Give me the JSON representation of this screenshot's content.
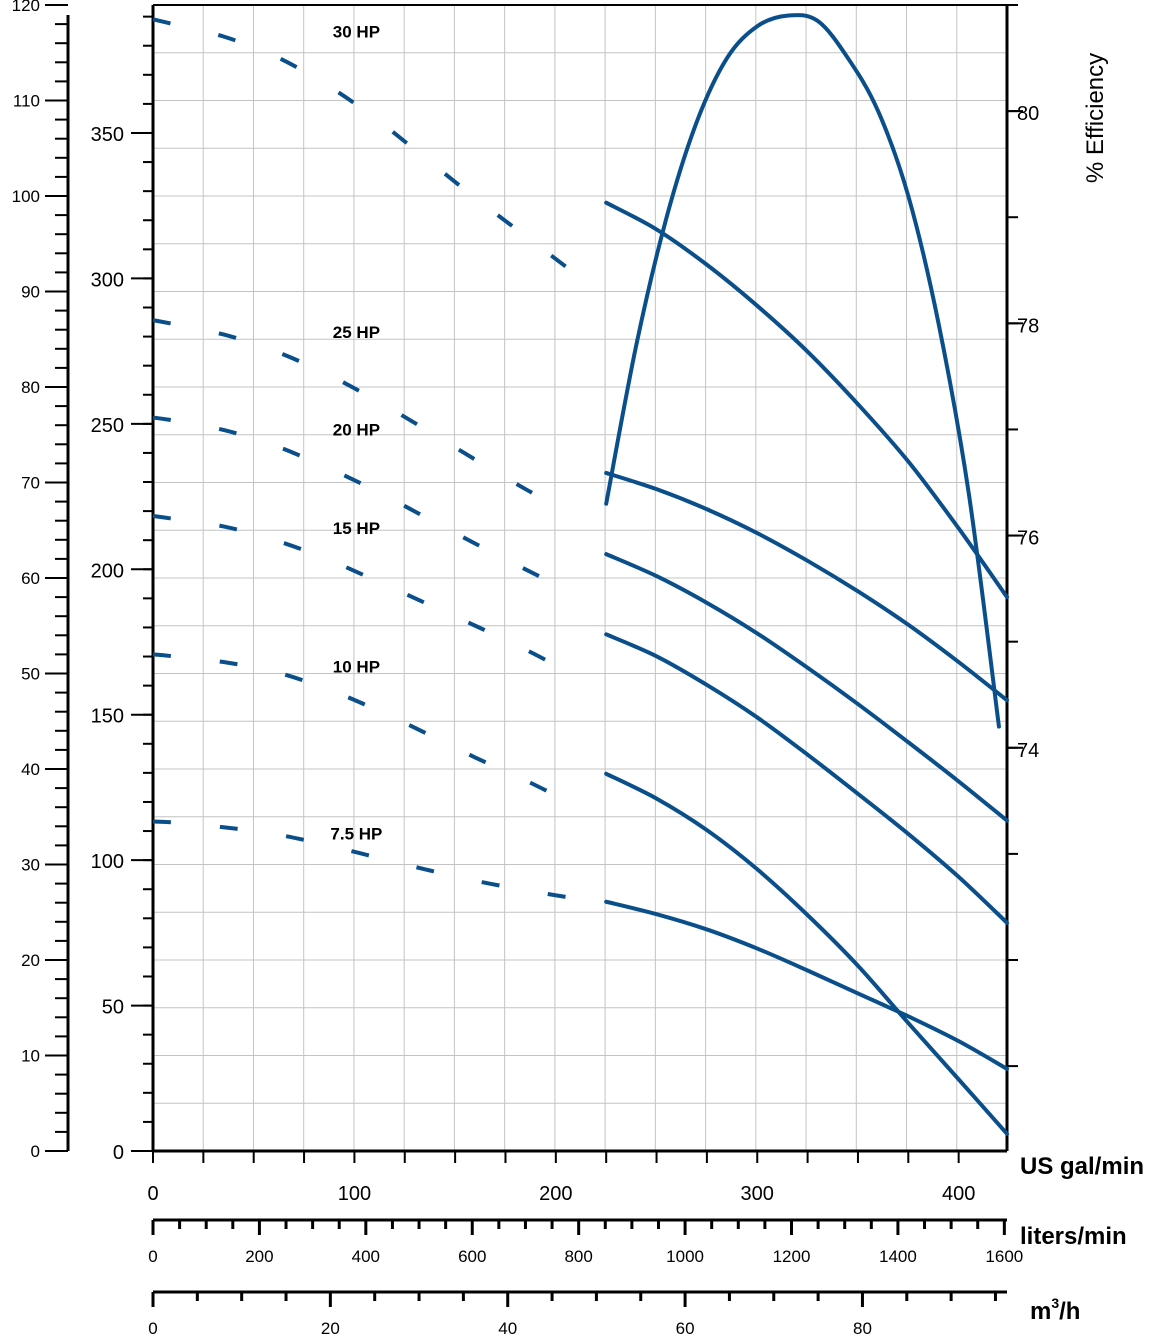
{
  "chart_data": {
    "type": "line",
    "x_axes": [
      {
        "unit": "US gal/min",
        "range": [
          0,
          424
        ],
        "ticks": [
          0,
          100,
          200,
          300,
          400
        ],
        "minor_step": 25
      },
      {
        "unit": "liters/min",
        "range": [
          0,
          1605
        ],
        "ticks": [
          0,
          200,
          400,
          600,
          800,
          1000,
          1200,
          1400,
          1600
        ],
        "minor_step": 50
      },
      {
        "unit": "m³/h",
        "unit_base": "m",
        "unit_sup": "3",
        "unit_tail": "/h",
        "range": [
          0,
          96.3
        ],
        "ticks": [
          0,
          20,
          40,
          60,
          80
        ],
        "minor_step": 5
      }
    ],
    "y_axes": [
      {
        "side": "left-outer",
        "range": [
          0,
          120
        ],
        "ticks": [
          0,
          10,
          20,
          30,
          40,
          50,
          60,
          70,
          80,
          90,
          100,
          110,
          120
        ],
        "minor_step": 2
      },
      {
        "side": "left-inner",
        "range": [
          0,
          394
        ],
        "ticks": [
          0,
          50,
          100,
          150,
          200,
          250,
          300,
          350
        ],
        "minor_step": 10
      },
      {
        "side": "right",
        "title": "% Efficiency",
        "range": [
          70.2,
          81
        ],
        "ticks": [
          74,
          76,
          78,
          80
        ],
        "minor_step": 1
      }
    ],
    "grid": true,
    "efficiency_curve": {
      "x": [
        225,
        240,
        255,
        270,
        285,
        300,
        315,
        330,
        345,
        360,
        375,
        390,
        405,
        420
      ],
      "y": [
        76.3,
        77.8,
        79.0,
        79.9,
        80.5,
        80.8,
        80.9,
        80.85,
        80.5,
        80.0,
        79.2,
        78.0,
        76.4,
        74.2
      ]
    },
    "series": [
      {
        "name": "30 HP",
        "dashed": {
          "x": [
            0,
            10,
            35,
            60,
            85,
            110,
            135,
            160,
            185,
            205
          ],
          "y": [
            118.5,
            118,
            116.7,
            114.7,
            111.8,
            108.2,
            104,
            99.8,
            95.8,
            92.6
          ]
        },
        "solid": {
          "x": [
            225,
            250,
            275,
            300,
            325,
            350,
            375,
            400,
            424
          ],
          "y": [
            99.3,
            96.5,
            92.8,
            88.5,
            83.7,
            78.2,
            72.2,
            65.2,
            58
          ]
        }
      },
      {
        "name": "25 HP",
        "dashed": {
          "x": [
            0,
            10,
            35,
            60,
            85,
            110,
            135,
            160,
            185,
            205
          ],
          "y": [
            87,
            86.6,
            85.5,
            83.8,
            81.5,
            78.7,
            75.6,
            72.4,
            69.3,
            67
          ]
        },
        "solid": {
          "x": [
            225,
            250,
            275,
            300,
            325,
            350,
            375,
            400,
            424
          ],
          "y": [
            71,
            69.3,
            67.2,
            64.7,
            61.8,
            58.6,
            55.1,
            51.2,
            47.2
          ]
        }
      },
      {
        "name": "20 HP",
        "dashed": {
          "x": [
            0,
            10,
            35,
            60,
            85,
            110,
            135,
            160,
            185,
            205
          ],
          "y": [
            76.8,
            76.5,
            75.5,
            73.9,
            71.7,
            69.2,
            66.4,
            63.6,
            60.9,
            58.8
          ]
        },
        "solid": {
          "x": [
            225,
            250,
            275,
            300,
            325,
            350,
            375,
            400,
            424
          ],
          "y": [
            62.5,
            60.2,
            57.4,
            54.2,
            50.6,
            46.8,
            42.8,
            38.7,
            34.6
          ]
        }
      },
      {
        "name": "15 HP",
        "dashed": {
          "x": [
            0,
            10,
            35,
            60,
            85,
            110,
            135,
            160,
            185,
            205
          ],
          "y": [
            66.5,
            66.2,
            65.4,
            64,
            62.1,
            59.8,
            57.4,
            55,
            52.5,
            50.3
          ]
        },
        "solid": {
          "x": [
            225,
            250,
            275,
            300,
            325,
            350,
            375,
            400,
            424
          ],
          "y": [
            54.1,
            51.8,
            48.8,
            45.4,
            41.5,
            37.4,
            33.2,
            28.7,
            23.9
          ]
        }
      },
      {
        "name": "10 HP",
        "dashed": {
          "x": [
            0,
            10,
            35,
            60,
            85,
            110,
            135,
            160,
            185,
            205
          ],
          "y": [
            52,
            51.8,
            51.2,
            50.2,
            48.5,
            46.3,
            43.8,
            41.2,
            38.8,
            36.7
          ]
        },
        "solid": {
          "x": [
            225,
            250,
            275,
            300,
            325,
            350,
            375,
            400,
            424
          ],
          "y": [
            39.5,
            36.9,
            33.6,
            29.5,
            24.7,
            19.4,
            13.4,
            7.5,
            1.8
          ]
        }
      },
      {
        "name": "7.5 HP",
        "dashed": {
          "x": [
            0,
            10,
            35,
            60,
            85,
            110,
            135,
            160,
            185,
            205
          ],
          "y": [
            34.5,
            34.4,
            33.9,
            33.2,
            32.1,
            30.8,
            29.5,
            28.3,
            27.3,
            26.6
          ]
        },
        "solid": {
          "x": [
            225,
            250,
            275,
            300,
            325,
            350,
            375,
            400,
            424
          ],
          "y": [
            26.1,
            24.8,
            23.2,
            21.2,
            18.9,
            16.5,
            14.1,
            11.5,
            8.6
          ]
        }
      }
    ]
  }
}
